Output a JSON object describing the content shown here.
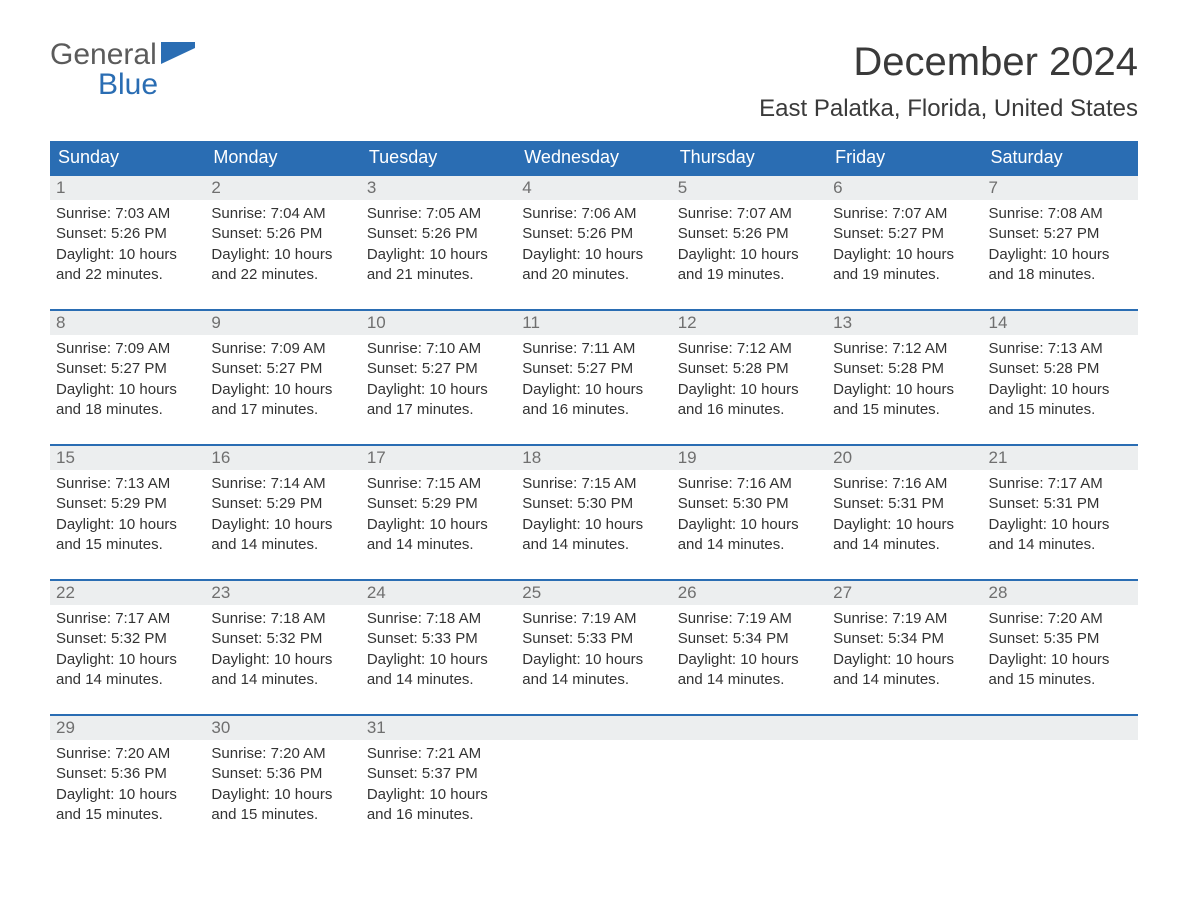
{
  "logo": {
    "line1": "General",
    "line2": "Blue",
    "icon_color": "#2a6db3",
    "text_gray": "#5b5b5b"
  },
  "title": "December 2024",
  "location": "East Palatka, Florida, United States",
  "colors": {
    "header_bg": "#2a6db3",
    "header_text": "#ffffff",
    "daynum_bg": "#eceeef",
    "daynum_text": "#6f6f6f",
    "body_text": "#333333",
    "row_border": "#2a6db3",
    "page_bg": "#ffffff"
  },
  "typography": {
    "title_fontsize": 40,
    "location_fontsize": 24,
    "dayheader_fontsize": 18,
    "daynum_fontsize": 17,
    "body_fontsize": 15
  },
  "day_headers": [
    "Sunday",
    "Monday",
    "Tuesday",
    "Wednesday",
    "Thursday",
    "Friday",
    "Saturday"
  ],
  "weeks": [
    [
      {
        "n": "1",
        "sr": "Sunrise: 7:03 AM",
        "ss": "Sunset: 5:26 PM",
        "d1": "Daylight: 10 hours",
        "d2": "and 22 minutes."
      },
      {
        "n": "2",
        "sr": "Sunrise: 7:04 AM",
        "ss": "Sunset: 5:26 PM",
        "d1": "Daylight: 10 hours",
        "d2": "and 22 minutes."
      },
      {
        "n": "3",
        "sr": "Sunrise: 7:05 AM",
        "ss": "Sunset: 5:26 PM",
        "d1": "Daylight: 10 hours",
        "d2": "and 21 minutes."
      },
      {
        "n": "4",
        "sr": "Sunrise: 7:06 AM",
        "ss": "Sunset: 5:26 PM",
        "d1": "Daylight: 10 hours",
        "d2": "and 20 minutes."
      },
      {
        "n": "5",
        "sr": "Sunrise: 7:07 AM",
        "ss": "Sunset: 5:26 PM",
        "d1": "Daylight: 10 hours",
        "d2": "and 19 minutes."
      },
      {
        "n": "6",
        "sr": "Sunrise: 7:07 AM",
        "ss": "Sunset: 5:27 PM",
        "d1": "Daylight: 10 hours",
        "d2": "and 19 minutes."
      },
      {
        "n": "7",
        "sr": "Sunrise: 7:08 AM",
        "ss": "Sunset: 5:27 PM",
        "d1": "Daylight: 10 hours",
        "d2": "and 18 minutes."
      }
    ],
    [
      {
        "n": "8",
        "sr": "Sunrise: 7:09 AM",
        "ss": "Sunset: 5:27 PM",
        "d1": "Daylight: 10 hours",
        "d2": "and 18 minutes."
      },
      {
        "n": "9",
        "sr": "Sunrise: 7:09 AM",
        "ss": "Sunset: 5:27 PM",
        "d1": "Daylight: 10 hours",
        "d2": "and 17 minutes."
      },
      {
        "n": "10",
        "sr": "Sunrise: 7:10 AM",
        "ss": "Sunset: 5:27 PM",
        "d1": "Daylight: 10 hours",
        "d2": "and 17 minutes."
      },
      {
        "n": "11",
        "sr": "Sunrise: 7:11 AM",
        "ss": "Sunset: 5:27 PM",
        "d1": "Daylight: 10 hours",
        "d2": "and 16 minutes."
      },
      {
        "n": "12",
        "sr": "Sunrise: 7:12 AM",
        "ss": "Sunset: 5:28 PM",
        "d1": "Daylight: 10 hours",
        "d2": "and 16 minutes."
      },
      {
        "n": "13",
        "sr": "Sunrise: 7:12 AM",
        "ss": "Sunset: 5:28 PM",
        "d1": "Daylight: 10 hours",
        "d2": "and 15 minutes."
      },
      {
        "n": "14",
        "sr": "Sunrise: 7:13 AM",
        "ss": "Sunset: 5:28 PM",
        "d1": "Daylight: 10 hours",
        "d2": "and 15 minutes."
      }
    ],
    [
      {
        "n": "15",
        "sr": "Sunrise: 7:13 AM",
        "ss": "Sunset: 5:29 PM",
        "d1": "Daylight: 10 hours",
        "d2": "and 15 minutes."
      },
      {
        "n": "16",
        "sr": "Sunrise: 7:14 AM",
        "ss": "Sunset: 5:29 PM",
        "d1": "Daylight: 10 hours",
        "d2": "and 14 minutes."
      },
      {
        "n": "17",
        "sr": "Sunrise: 7:15 AM",
        "ss": "Sunset: 5:29 PM",
        "d1": "Daylight: 10 hours",
        "d2": "and 14 minutes."
      },
      {
        "n": "18",
        "sr": "Sunrise: 7:15 AM",
        "ss": "Sunset: 5:30 PM",
        "d1": "Daylight: 10 hours",
        "d2": "and 14 minutes."
      },
      {
        "n": "19",
        "sr": "Sunrise: 7:16 AM",
        "ss": "Sunset: 5:30 PM",
        "d1": "Daylight: 10 hours",
        "d2": "and 14 minutes."
      },
      {
        "n": "20",
        "sr": "Sunrise: 7:16 AM",
        "ss": "Sunset: 5:31 PM",
        "d1": "Daylight: 10 hours",
        "d2": "and 14 minutes."
      },
      {
        "n": "21",
        "sr": "Sunrise: 7:17 AM",
        "ss": "Sunset: 5:31 PM",
        "d1": "Daylight: 10 hours",
        "d2": "and 14 minutes."
      }
    ],
    [
      {
        "n": "22",
        "sr": "Sunrise: 7:17 AM",
        "ss": "Sunset: 5:32 PM",
        "d1": "Daylight: 10 hours",
        "d2": "and 14 minutes."
      },
      {
        "n": "23",
        "sr": "Sunrise: 7:18 AM",
        "ss": "Sunset: 5:32 PM",
        "d1": "Daylight: 10 hours",
        "d2": "and 14 minutes."
      },
      {
        "n": "24",
        "sr": "Sunrise: 7:18 AM",
        "ss": "Sunset: 5:33 PM",
        "d1": "Daylight: 10 hours",
        "d2": "and 14 minutes."
      },
      {
        "n": "25",
        "sr": "Sunrise: 7:19 AM",
        "ss": "Sunset: 5:33 PM",
        "d1": "Daylight: 10 hours",
        "d2": "and 14 minutes."
      },
      {
        "n": "26",
        "sr": "Sunrise: 7:19 AM",
        "ss": "Sunset: 5:34 PM",
        "d1": "Daylight: 10 hours",
        "d2": "and 14 minutes."
      },
      {
        "n": "27",
        "sr": "Sunrise: 7:19 AM",
        "ss": "Sunset: 5:34 PM",
        "d1": "Daylight: 10 hours",
        "d2": "and 14 minutes."
      },
      {
        "n": "28",
        "sr": "Sunrise: 7:20 AM",
        "ss": "Sunset: 5:35 PM",
        "d1": "Daylight: 10 hours",
        "d2": "and 15 minutes."
      }
    ],
    [
      {
        "n": "29",
        "sr": "Sunrise: 7:20 AM",
        "ss": "Sunset: 5:36 PM",
        "d1": "Daylight: 10 hours",
        "d2": "and 15 minutes."
      },
      {
        "n": "30",
        "sr": "Sunrise: 7:20 AM",
        "ss": "Sunset: 5:36 PM",
        "d1": "Daylight: 10 hours",
        "d2": "and 15 minutes."
      },
      {
        "n": "31",
        "sr": "Sunrise: 7:21 AM",
        "ss": "Sunset: 5:37 PM",
        "d1": "Daylight: 10 hours",
        "d2": "and 16 minutes."
      },
      null,
      null,
      null,
      null
    ]
  ]
}
